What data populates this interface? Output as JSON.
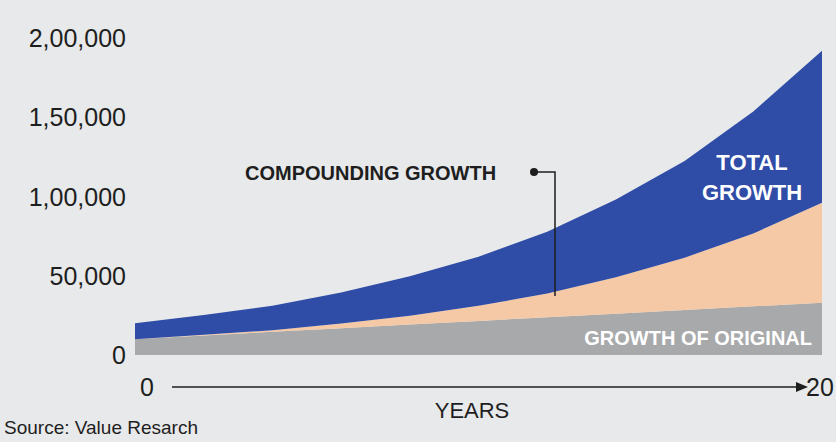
{
  "chart_data": {
    "type": "area",
    "stacked": true,
    "x_label": "YEARS",
    "source": "Source: Value Resarch",
    "x": [
      0,
      2,
      4,
      6,
      8,
      10,
      12,
      14,
      16,
      18,
      20
    ],
    "xlim": [
      0,
      20
    ],
    "xticks": [
      0,
      20
    ],
    "ylim": [
      0,
      200000
    ],
    "yticks": [
      0,
      {
        "value": 50000,
        "label": "50,000"
      },
      {
        "value": 100000,
        "label": "1,00,000"
      },
      {
        "value": 150000,
        "label": "1,50,000"
      },
      {
        "value": 200000,
        "label": "2,00,000"
      }
    ],
    "grid": false,
    "series": [
      {
        "name": "GROWTH OF ORIGINAL",
        "color": "#a8a9ab",
        "values": [
          10000,
          12300,
          14600,
          16900,
          19200,
          21500,
          23800,
          26100,
          28400,
          30700,
          33000
        ]
      },
      {
        "name": "COMPOUNDING GROWTH",
        "color": "#f5c9a5",
        "values": [
          0,
          500,
          1000,
          3000,
          5500,
          9500,
          15000,
          23000,
          33000,
          46000,
          63000
        ]
      },
      {
        "name": "TOTAL GROWTH",
        "color": "#2f4ca6",
        "values": [
          10000,
          12500,
          15500,
          19500,
          25000,
          31000,
          39000,
          49000,
          61000,
          77000,
          96000
        ]
      }
    ]
  }
}
